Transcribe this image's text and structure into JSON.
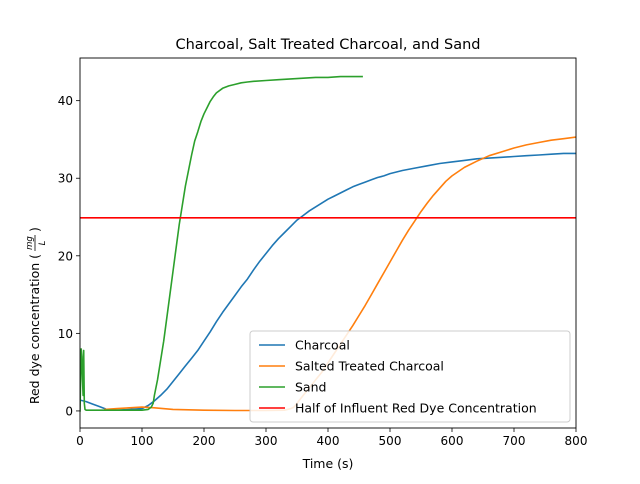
{
  "chart_data": {
    "type": "line",
    "title": "Charcoal, Salt Treated Charcoal, and Sand",
    "xlabel": "Time (s)",
    "ylabel_main": "Red dye concentration (",
    "ylabel_num": "mg",
    "ylabel_den": "L",
    "ylabel_end": ")",
    "xlim": [
      0,
      800
    ],
    "ylim": [
      -2.2,
      45.5
    ],
    "xticks": [
      0,
      100,
      200,
      300,
      400,
      500,
      600,
      700,
      800
    ],
    "yticks": [
      0,
      10,
      20,
      30,
      40
    ],
    "grid": false,
    "legend_position": "lower-right",
    "series": [
      {
        "name": "Charcoal",
        "color": "#1f77b4",
        "x": [
          0,
          10,
          20,
          30,
          40,
          45,
          60,
          80,
          100,
          110,
          115,
          120,
          130,
          140,
          150,
          160,
          170,
          180,
          190,
          200,
          210,
          220,
          230,
          240,
          250,
          260,
          270,
          280,
          290,
          300,
          310,
          320,
          330,
          340,
          350,
          360,
          370,
          380,
          390,
          400,
          410,
          420,
          430,
          440,
          450,
          460,
          470,
          480,
          490,
          500,
          520,
          540,
          560,
          580,
          600,
          620,
          640,
          660,
          680,
          700,
          720,
          740,
          760,
          780,
          800
        ],
        "y": [
          1.4,
          1.2,
          0.9,
          0.6,
          0.3,
          0.1,
          0.1,
          0.2,
          0.3,
          0.7,
          1.0,
          1.3,
          2.0,
          2.8,
          3.8,
          4.8,
          5.8,
          6.8,
          7.8,
          9.0,
          10.2,
          11.5,
          12.7,
          13.8,
          14.9,
          16.0,
          17.0,
          18.2,
          19.3,
          20.3,
          21.3,
          22.2,
          23.0,
          23.8,
          24.6,
          25.2,
          25.8,
          26.3,
          26.8,
          27.3,
          27.7,
          28.1,
          28.5,
          28.9,
          29.2,
          29.5,
          29.8,
          30.1,
          30.3,
          30.6,
          31.0,
          31.3,
          31.6,
          31.9,
          32.1,
          32.3,
          32.5,
          32.6,
          32.7,
          32.8,
          32.9,
          33.0,
          33.1,
          33.2,
          33.2
        ]
      },
      {
        "name": "Salted Treated Charcoal",
        "color": "#ff7f0e",
        "x": [
          40,
          60,
          80,
          100,
          120,
          150,
          200,
          250,
          300,
          330,
          340,
          345,
          350,
          360,
          370,
          380,
          390,
          400,
          410,
          420,
          430,
          440,
          450,
          460,
          470,
          480,
          490,
          500,
          510,
          520,
          530,
          540,
          550,
          560,
          570,
          580,
          590,
          600,
          620,
          640,
          660,
          680,
          700,
          720,
          740,
          760,
          780,
          800
        ],
        "y": [
          0.2,
          0.3,
          0.4,
          0.5,
          0.4,
          0.2,
          0.1,
          0.05,
          0.05,
          0.1,
          0.3,
          0.5,
          1.0,
          2.0,
          3.0,
          4.0,
          5.0,
          6.2,
          7.4,
          8.6,
          9.8,
          11.0,
          12.3,
          13.6,
          15.0,
          16.4,
          17.8,
          19.2,
          20.6,
          22.0,
          23.3,
          24.5,
          25.7,
          26.8,
          27.8,
          28.7,
          29.6,
          30.3,
          31.4,
          32.2,
          32.9,
          33.4,
          33.9,
          34.3,
          34.6,
          34.9,
          35.1,
          35.3
        ]
      },
      {
        "name": "Sand",
        "color": "#2ca02c",
        "x": [
          0,
          2,
          3,
          4,
          5,
          6,
          7,
          8,
          10,
          20,
          40,
          60,
          80,
          100,
          110,
          115,
          118,
          120,
          125,
          130,
          135,
          140,
          145,
          150,
          155,
          160,
          165,
          170,
          175,
          180,
          185,
          190,
          195,
          200,
          205,
          210,
          215,
          220,
          230,
          240,
          250,
          260,
          270,
          280,
          300,
          320,
          340,
          360,
          380,
          400,
          420,
          440,
          455
        ],
        "y": [
          0.0,
          8.0,
          7.0,
          4.0,
          2.0,
          7.8,
          1.0,
          0.2,
          0.1,
          0.1,
          0.1,
          0.1,
          0.1,
          0.1,
          0.2,
          0.5,
          1.0,
          2.0,
          4.0,
          6.5,
          9.0,
          12.0,
          15.0,
          18.0,
          21.0,
          24.0,
          26.5,
          29.0,
          31.0,
          33.0,
          34.8,
          36.0,
          37.3,
          38.3,
          39.1,
          39.9,
          40.5,
          41.0,
          41.6,
          41.9,
          42.1,
          42.3,
          42.4,
          42.5,
          42.6,
          42.7,
          42.8,
          42.9,
          43.0,
          43.0,
          43.1,
          43.1,
          43.1
        ]
      },
      {
        "name": "Half of Influent Red Dye Concentration",
        "color": "#ff0000",
        "x": [
          0,
          800
        ],
        "y": [
          24.9,
          24.9
        ]
      }
    ]
  }
}
